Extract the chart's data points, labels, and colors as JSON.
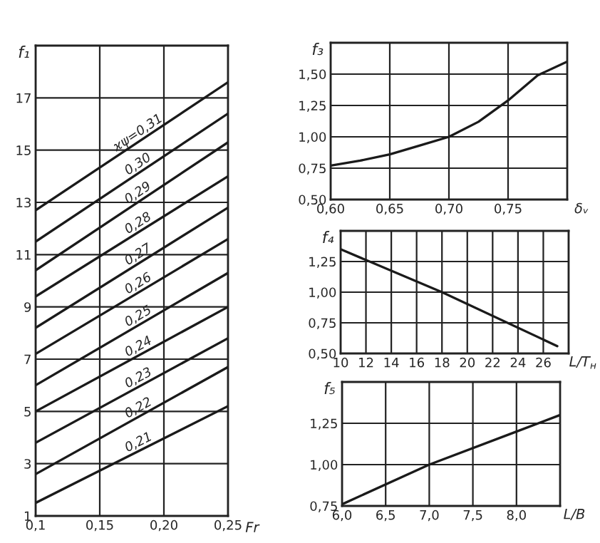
{
  "chart_data": [
    {
      "type": "line",
      "ylabel": "f₁",
      "xlabel": "Fr",
      "xlim": [
        0.1,
        0.25
      ],
      "ylim": [
        1,
        19
      ],
      "xticks": [
        {
          "value": 0.1,
          "label": "0,1"
        },
        {
          "value": 0.15,
          "label": "0,15"
        },
        {
          "value": 0.2,
          "label": "0,20"
        },
        {
          "value": 0.25,
          "label": "0,25"
        }
      ],
      "yticks": [
        1,
        3,
        5,
        7,
        9,
        11,
        13,
        15,
        17
      ],
      "grid": true,
      "legend": false,
      "series": [
        {
          "name": "ϰψ=0,31",
          "color": "#1a1a1a",
          "x": [
            0.1,
            0.25
          ],
          "values": [
            12.7,
            17.6
          ]
        },
        {
          "name": "0,30",
          "color": "#1a1a1a",
          "x": [
            0.1,
            0.25
          ],
          "values": [
            11.5,
            16.4
          ]
        },
        {
          "name": "0,29",
          "color": "#1a1a1a",
          "x": [
            0.1,
            0.25
          ],
          "values": [
            10.4,
            15.3
          ]
        },
        {
          "name": "0,28",
          "color": "#1a1a1a",
          "x": [
            0.1,
            0.25
          ],
          "values": [
            9.4,
            14.0
          ]
        },
        {
          "name": "0,27",
          "color": "#1a1a1a",
          "x": [
            0.1,
            0.25
          ],
          "values": [
            8.2,
            12.8
          ]
        },
        {
          "name": "0,26",
          "color": "#1a1a1a",
          "x": [
            0.1,
            0.25
          ],
          "values": [
            7.2,
            11.6
          ]
        },
        {
          "name": "0,25",
          "color": "#1a1a1a",
          "x": [
            0.1,
            0.25
          ],
          "values": [
            6.0,
            10.3
          ]
        },
        {
          "name": "0,24",
          "color": "#1a1a1a",
          "x": [
            0.1,
            0.25
          ],
          "values": [
            5.0,
            9.0
          ]
        },
        {
          "name": "0,23",
          "color": "#1a1a1a",
          "x": [
            0.1,
            0.25
          ],
          "values": [
            3.8,
            7.8
          ]
        },
        {
          "name": "0,22",
          "color": "#1a1a1a",
          "x": [
            0.1,
            0.25
          ],
          "values": [
            2.6,
            6.7
          ]
        },
        {
          "name": "0,21",
          "color": "#1a1a1a",
          "x": [
            0.1,
            0.25
          ],
          "values": [
            1.5,
            5.2
          ]
        }
      ]
    },
    {
      "type": "line",
      "ylabel": "f₃",
      "xlabel": "δᵥ",
      "xlim": [
        0.6,
        0.8
      ],
      "ylim": [
        0.5,
        1.75
      ],
      "xticks": [
        {
          "value": 0.6,
          "label": "0,60"
        },
        {
          "value": 0.65,
          "label": "0,65"
        },
        {
          "value": 0.7,
          "label": "0,70"
        },
        {
          "value": 0.75,
          "label": "0,75"
        }
      ],
      "yticks": [
        {
          "value": 0.5,
          "label": "0,50"
        },
        {
          "value": 0.75,
          "label": "0,75"
        },
        {
          "value": 1.0,
          "label": "1,00"
        },
        {
          "value": 1.25,
          "label": "1,25"
        },
        {
          "value": 1.5,
          "label": "1,50"
        }
      ],
      "grid": true,
      "legend": false,
      "series": [
        {
          "color": "#1a1a1a",
          "x": [
            0.6,
            0.625,
            0.65,
            0.675,
            0.7,
            0.725,
            0.75,
            0.775,
            0.8
          ],
          "values": [
            0.77,
            0.81,
            0.86,
            0.93,
            1.0,
            1.12,
            1.29,
            1.49,
            1.6
          ]
        }
      ]
    },
    {
      "type": "line",
      "ylabel": "f₄",
      "xlabel": "L/T$_{н}$",
      "xlim": [
        10,
        28
      ],
      "ylim": [
        0.5,
        1.5
      ],
      "xticks": [
        10,
        12,
        14,
        16,
        18,
        20,
        22,
        24,
        26,
        {
          "value": 28,
          "label": null
        }
      ],
      "yticks": [
        {
          "value": 0.5,
          "label": "0,50"
        },
        {
          "value": 0.75,
          "label": "0,75"
        },
        {
          "value": 1.0,
          "label": "1,00"
        },
        {
          "value": 1.25,
          "label": "1,25"
        }
      ],
      "grid": true,
      "legend": false,
      "series": [
        {
          "color": "#1a1a1a",
          "x": [
            10,
            18,
            27.1
          ],
          "values": [
            1.35,
            1.0,
            0.56
          ]
        }
      ]
    },
    {
      "type": "line",
      "ylabel": "f₅",
      "xlabel": "L/B",
      "xlim": [
        6.0,
        8.5
      ],
      "ylim": [
        0.75,
        1.5
      ],
      "xticks": [
        {
          "value": 6.0,
          "label": "6,0"
        },
        {
          "value": 6.5,
          "label": "6,5"
        },
        {
          "value": 7.0,
          "label": "7,0"
        },
        {
          "value": 7.5,
          "label": "7,5"
        },
        {
          "value": 8.0,
          "label": "8,0"
        }
      ],
      "yticks": [
        {
          "value": 0.75,
          "label": "0,75"
        },
        {
          "value": 1.0,
          "label": "1,00"
        },
        {
          "value": 1.25,
          "label": "1,25"
        }
      ],
      "grid": true,
      "legend": false,
      "series": [
        {
          "color": "#1a1a1a",
          "x": [
            6.0,
            7.0,
            8.0,
            8.5
          ],
          "values": [
            0.76,
            1.0,
            1.2,
            1.3
          ]
        }
      ]
    }
  ]
}
